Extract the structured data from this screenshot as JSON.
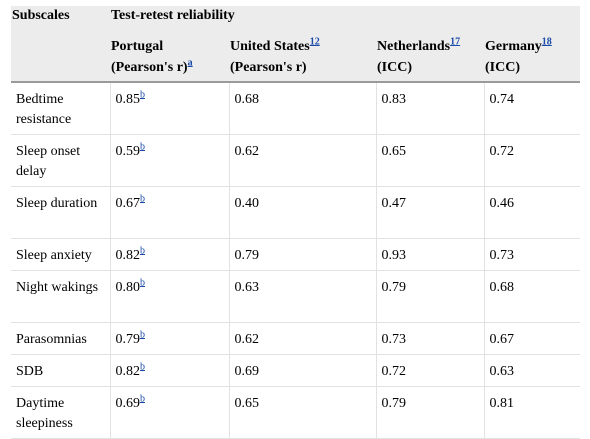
{
  "header": {
    "col0": "Subscales",
    "group": "Test-retest reliability",
    "columns": [
      {
        "name": "Portugal",
        "sub": "(Pearson's r)",
        "ref": "a"
      },
      {
        "name": "United States",
        "sub": "(Pearson's r)",
        "ref": "12"
      },
      {
        "name": "Netherlands",
        "sub": "(ICC)",
        "ref": "17"
      },
      {
        "name": "Germany",
        "sub": "(ICC)",
        "ref": "18"
      }
    ]
  },
  "rows": [
    {
      "label": "Bedtime resistance",
      "values": [
        "0.85",
        "0.68",
        "0.83",
        "0.74"
      ],
      "ref": "b"
    },
    {
      "label": "Sleep onset delay",
      "values": [
        "0.59",
        "0.62",
        "0.65",
        "0.72"
      ],
      "ref": "b"
    },
    {
      "label": "Sleep duration",
      "values": [
        "0.67",
        "0.40",
        "0.47",
        "0.46"
      ],
      "ref": "b"
    },
    {
      "label": "Sleep anxiety",
      "values": [
        "0.82",
        "0.79",
        "0.93",
        "0.73"
      ],
      "ref": "b"
    },
    {
      "label": "Night wakings",
      "values": [
        "0.80",
        "0.63",
        "0.79",
        "0.68"
      ],
      "ref": "b"
    },
    {
      "label": "Parasomnias",
      "values": [
        "0.79",
        "0.62",
        "0.73",
        "0.67"
      ],
      "ref": "b"
    },
    {
      "label": "SDB",
      "values": [
        "0.82",
        "0.69",
        "0.72",
        "0.63"
      ],
      "ref": "b"
    },
    {
      "label": "Daytime sleepiness",
      "values": [
        "0.69",
        "0.65",
        "0.79",
        "0.81"
      ],
      "ref": "b"
    }
  ]
}
